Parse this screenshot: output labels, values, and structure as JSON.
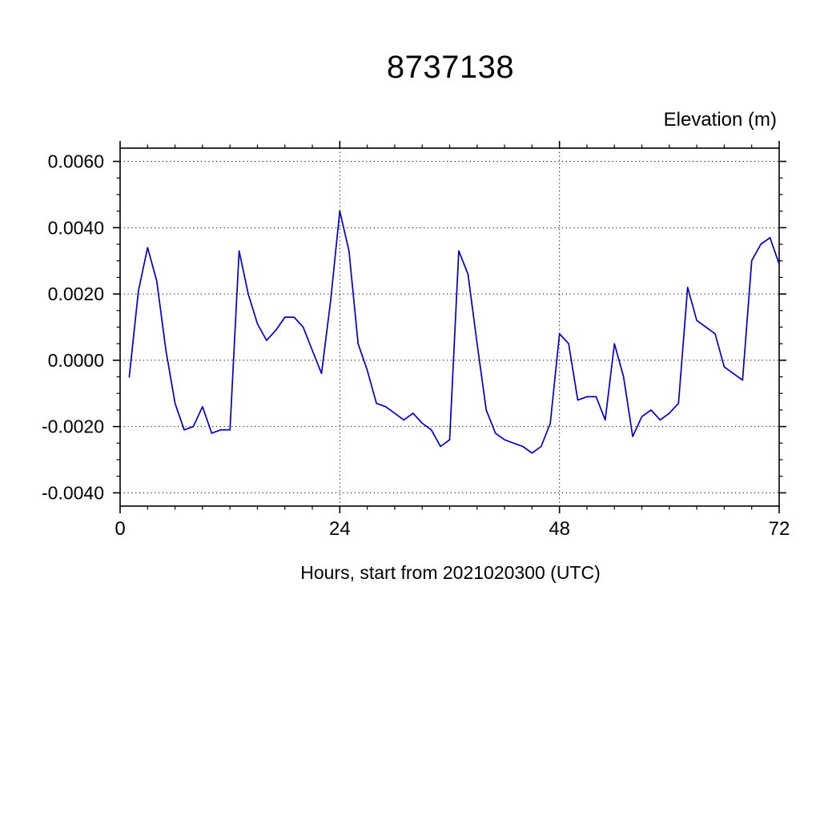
{
  "chart_data": {
    "type": "line",
    "title": "8737138",
    "ylabel": "Elevation (m)",
    "xlabel": "Hours, start from 2021020300 (UTC)",
    "xlim": [
      0,
      72
    ],
    "ylim": [
      -0.0044,
      0.0064
    ],
    "x_major_ticks": [
      0,
      24,
      48,
      72
    ],
    "x_minor_step": 3,
    "y_major_ticks": [
      -0.004,
      -0.002,
      0.0,
      0.002,
      0.004,
      0.006
    ],
    "y_minor_step": 0.0005,
    "grid": true,
    "grid_style": "dotted",
    "line_color": "#0000cd",
    "frame_color": "#000000",
    "series": [
      {
        "name": "elevation",
        "color": "#0000cd",
        "x": [
          1,
          2,
          3,
          4,
          5,
          6,
          7,
          8,
          9,
          10,
          11,
          12,
          13,
          14,
          15,
          16,
          17,
          18,
          19,
          20,
          21,
          22,
          23,
          24,
          25,
          26,
          27,
          28,
          29,
          30,
          31,
          32,
          33,
          34,
          35,
          36,
          37,
          38,
          39,
          40,
          41,
          42,
          43,
          44,
          45,
          46,
          47,
          48,
          49,
          50,
          51,
          52,
          53,
          54,
          55,
          56,
          57,
          58,
          59,
          60,
          61,
          62,
          63,
          64,
          65,
          66,
          67,
          68,
          69,
          70,
          71,
          72
        ],
        "values": [
          -0.0005,
          0.0021,
          0.0034,
          0.0024,
          0.0003,
          -0.0013,
          -0.0021,
          -0.002,
          -0.0014,
          -0.0022,
          -0.0021,
          -0.0021,
          0.0033,
          0.002,
          0.0011,
          0.0006,
          0.0009,
          0.0013,
          0.0013,
          0.001,
          0.0003,
          -0.0004,
          0.0018,
          0.0045,
          0.0033,
          0.0005,
          -0.0003,
          -0.0013,
          -0.0014,
          -0.0016,
          -0.0018,
          -0.0016,
          -0.0019,
          -0.0021,
          -0.0026,
          -0.0024,
          0.0033,
          0.0026,
          0.0005,
          -0.0015,
          -0.0022,
          -0.0024,
          -0.0025,
          -0.0026,
          -0.0028,
          -0.0026,
          -0.0019,
          0.0008,
          0.0005,
          -0.0012,
          -0.0011,
          -0.0011,
          -0.0018,
          0.0005,
          -0.0005,
          -0.0023,
          -0.0017,
          -0.0015,
          -0.0018,
          -0.0016,
          -0.0013,
          0.0022,
          0.0012,
          0.001,
          0.0008,
          -0.0002,
          -0.0004,
          -0.0006,
          0.003,
          0.0035,
          0.0037,
          0.0029
        ]
      }
    ]
  }
}
